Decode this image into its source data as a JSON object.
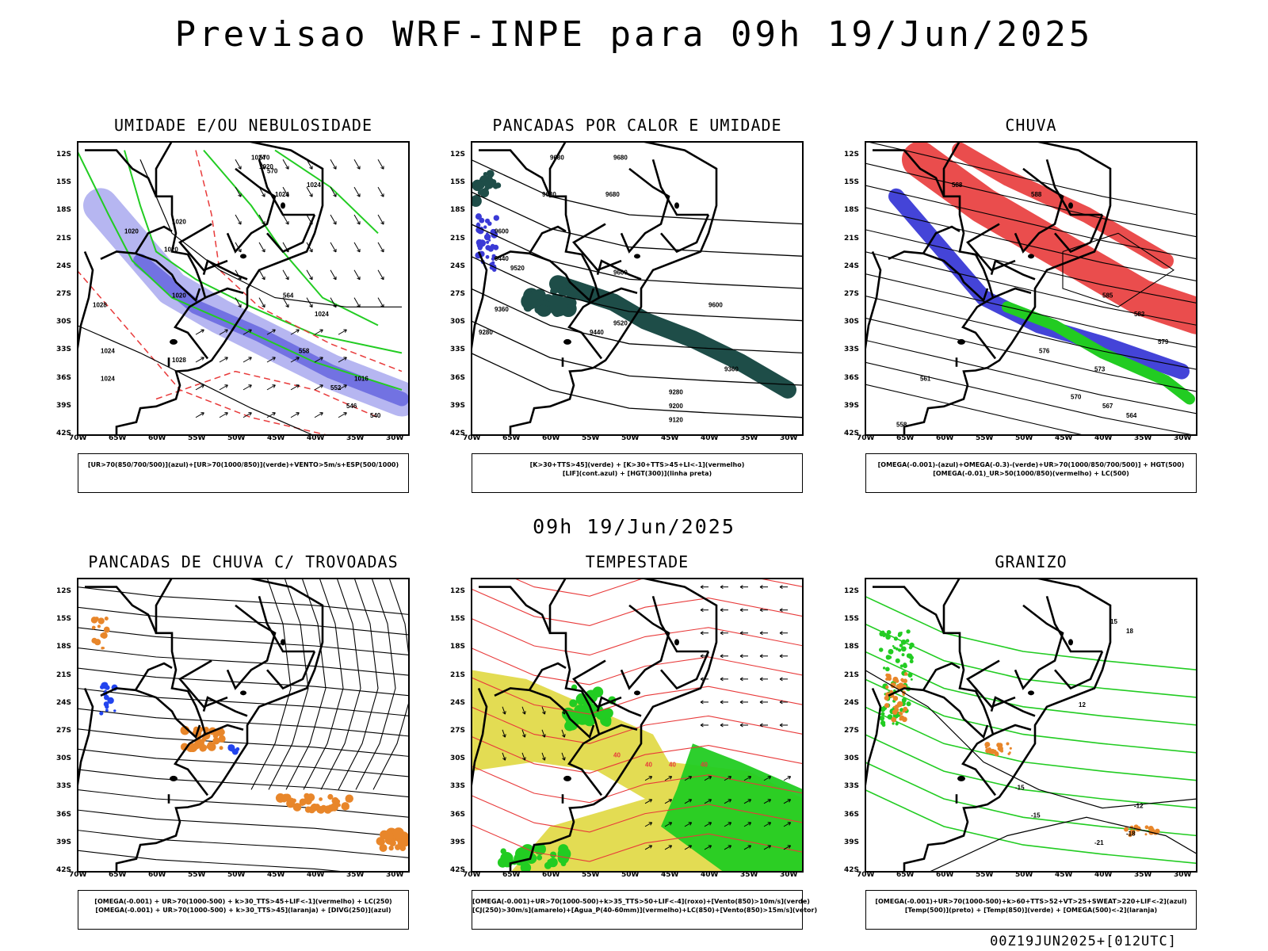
{
  "title": "Previsao WRF-INPE  para 09h 19/Jun/2025",
  "mid_date": "09h 19/Jun/2025",
  "footer": "00Z19JUN2025+[012UTC]",
  "axes": {
    "lat_labels": [
      "12S",
      "15S",
      "18S",
      "21S",
      "24S",
      "27S",
      "30S",
      "33S",
      "36S",
      "39S",
      "42S"
    ],
    "lon_labels": [
      "70W",
      "65W",
      "60W",
      "55W",
      "50W",
      "45W",
      "40W",
      "35W",
      "30W"
    ]
  },
  "colors": {
    "frame": "#000000",
    "blue_fill": "#a9a9ef",
    "blue_dark": "#3a3ad6",
    "green": "#22cc22",
    "red": "#e83a3a",
    "dark_teal": "#1e4d48",
    "orange": "#e8862a",
    "yellow": "#e0d840"
  },
  "panels": [
    {
      "title": "UMIDADE E/OU NEBULOSIDADE",
      "legend": [
        "[UR>70(850/700/500)](azul)+[UR>70(1000/850)](verde)+VENTO>5m/s+ESP(500/1000)"
      ],
      "contour_labels": [
        "1020",
        "1024",
        "1020",
        "1024",
        "1024",
        "1020",
        "1024",
        "1024",
        "1028",
        "1024",
        "1020",
        "1016",
        "570",
        "570",
        "564",
        "558",
        "552",
        "546",
        "540",
        "1028",
        "1020"
      ]
    },
    {
      "title": "PANCADAS POR CALOR E UMIDADE",
      "legend": [
        "[K>30+TTS>45](verde) + [K>30+TTS>45+LI<-1](vermelho)",
        "[LIF](cont.azul) + [HGT(300)](linha preta)"
      ],
      "contour_labels": [
        "9680",
        "9680",
        "9680",
        "9680",
        "9600",
        "9600",
        "9600",
        "9520",
        "9440",
        "9520",
        "9440",
        "9360",
        "9360",
        "9280",
        "9200",
        "9120",
        "9280"
      ]
    },
    {
      "title": "CHUVA",
      "legend": [
        "[OMEGA(-0.001)-(azul)+OMEGA(-0.3)-(verde)+UR>70(1000/850/700/500)] + HGT(500)",
        "[OMEGA(-0.01)_UR>50(1000/850)(vermelho) + LC(500)"
      ],
      "contour_labels": [
        "588",
        "588",
        "585",
        "582",
        "579",
        "576",
        "573",
        "570",
        "567",
        "564",
        "561",
        "558"
      ]
    },
    {
      "title": "PANCADAS DE CHUVA C/ TROVOADAS",
      "legend": [
        "[OMEGA(-0.001) + UR>70(1000-500) + k>30_TTS>45+LIF<-1](vermelho) + LC(250)",
        "[OMEGA(-0.001) + UR>70(1000-500) + k>30_TTS>45](laranja) + [DIVG(250)](azul)"
      ],
      "contour_labels": []
    },
    {
      "title": "TEMPESTADE",
      "legend": [
        "[OMEGA(-0.001)+UR>70(1000-500)+k>35_TTS>50+LIF<-4](roxo)+[Vento(850)>10m/s](verde)",
        "[CJ(250)>30m/s](amarelo)+[Agua_P(40-60mm)](vermelho)+LC(850)+[Vento(850)>15m/s](vetor)"
      ],
      "contour_labels": [
        "40",
        "40",
        "40",
        "40"
      ]
    },
    {
      "title": "GRANIZO",
      "legend": [
        "[OMEGA(-0.001)+UR>70(1000-500)+k>60+TTS>52+VT>25+SWEAT>220+LIF<-2](azul)",
        "[Temp(500)](preto) + [Temp(850)](verde) + [OMEGA(500)<-2](laranja)"
      ],
      "contour_labels": [
        "-15",
        "-12",
        "-18",
        "-21",
        "-15",
        "15",
        "18",
        "12"
      ]
    }
  ]
}
